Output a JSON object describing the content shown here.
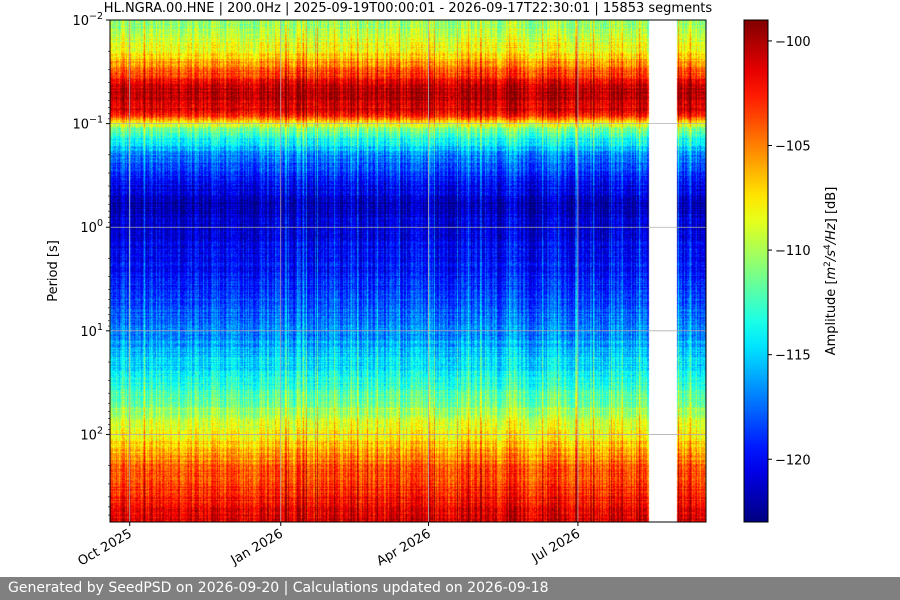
{
  "chart_data": {
    "type": "heatmap",
    "title": "HL.NGRA.00.HNE | 200.0Hz | 2025-09-19T00:00:01 - 2026-09-17T22:30:01 | 15853 segments",
    "ylabel": "Period [s]",
    "yscale": "log",
    "ylim": [
      0.01,
      700
    ],
    "yticks": [
      {
        "value": 0.01,
        "base": "10",
        "exp": "−2"
      },
      {
        "value": 0.1,
        "base": "10",
        "exp": "−1"
      },
      {
        "value": 1,
        "base": "10",
        "exp": "0"
      },
      {
        "value": 10,
        "base": "10",
        "exp": "1"
      },
      {
        "value": 100,
        "base": "10",
        "exp": "2"
      }
    ],
    "xlim": [
      "2025-09-19",
      "2026-09-17"
    ],
    "xticks": [
      {
        "date": "2025-10-01",
        "label": "Oct 2025"
      },
      {
        "date": "2026-01-01",
        "label": "Jan 2026"
      },
      {
        "date": "2026-04-01",
        "label": "Apr 2026"
      },
      {
        "date": "2026-07-01",
        "label": "Jul 2026"
      }
    ],
    "data_gaps": [
      {
        "start": "2026-08-13",
        "end": "2026-08-30"
      }
    ],
    "grid": true,
    "colormap": "jet",
    "colorbar": {
      "label_parts": [
        "Amplitude [",
        "m",
        "2",
        "/s",
        "4",
        "/Hz",
        "] [dB]"
      ],
      "range": [
        -123,
        -99
      ],
      "ticks": [
        -100,
        -105,
        -110,
        -115,
        -120
      ]
    },
    "amplitude_profile": [
      {
        "period": 0.01,
        "db": -111
      },
      {
        "period": 0.02,
        "db": -108
      },
      {
        "period": 0.035,
        "db": -103
      },
      {
        "period": 0.05,
        "db": -100
      },
      {
        "period": 0.08,
        "db": -102
      },
      {
        "period": 0.11,
        "db": -111
      },
      {
        "period": 0.2,
        "db": -117
      },
      {
        "period": 0.35,
        "db": -120
      },
      {
        "period": 0.6,
        "db": -122
      },
      {
        "period": 1,
        "db": -121
      },
      {
        "period": 3,
        "db": -119.5
      },
      {
        "period": 10,
        "db": -117
      },
      {
        "period": 30,
        "db": -113.5
      },
      {
        "period": 80,
        "db": -109
      },
      {
        "period": 200,
        "db": -104.5
      },
      {
        "period": 700,
        "db": -101
      }
    ]
  },
  "footer": {
    "text": "Generated by SeedPSD on 2026-09-20 | Calculations updated on 2026-09-18"
  }
}
